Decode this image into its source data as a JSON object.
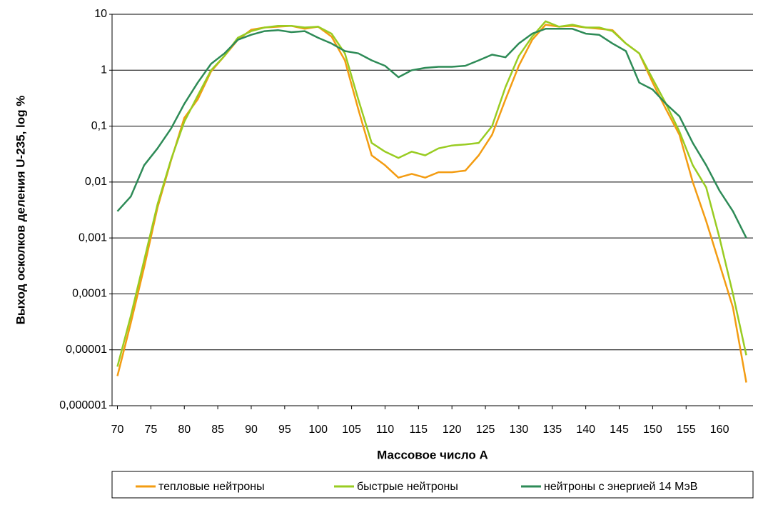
{
  "chart_data": {
    "type": "line",
    "x_label": "Массовое число А",
    "y_label": "Выход осколков деления U-235, log %",
    "x": [
      70,
      72,
      74,
      76,
      78,
      80,
      82,
      84,
      86,
      88,
      90,
      92,
      94,
      96,
      98,
      100,
      102,
      104,
      106,
      108,
      110,
      112,
      114,
      116,
      118,
      120,
      122,
      124,
      126,
      128,
      130,
      132,
      134,
      136,
      138,
      140,
      142,
      144,
      146,
      148,
      150,
      152,
      154,
      156,
      158,
      160,
      162,
      164
    ],
    "series": [
      {
        "name": "тепловые нейтроны",
        "color": "#f39c12",
        "values": [
          3.4e-06,
          3e-05,
          0.0003,
          0.0035,
          0.024,
          0.14,
          0.3,
          0.95,
          1.8,
          3.5,
          5.3,
          5.8,
          6,
          6.2,
          5.5,
          6,
          4,
          1.5,
          0.2,
          0.03,
          0.02,
          0.012,
          0.014,
          0.012,
          0.015,
          0.015,
          0.016,
          0.03,
          0.07,
          0.3,
          1.2,
          3.5,
          6.5,
          6,
          6.2,
          5.8,
          5.5,
          5.2,
          3,
          2,
          0.6,
          0.2,
          0.07,
          0.01,
          0.002,
          0.00034,
          5.7e-05,
          2.6e-06
        ]
      },
      {
        "name": "быстрые нейтроны",
        "color": "#99cc22",
        "values": [
          5e-06,
          4e-05,
          0.0004,
          0.004,
          0.025,
          0.12,
          0.35,
          1,
          1.8,
          3.8,
          5,
          5.8,
          6.2,
          6.2,
          5.8,
          6,
          4.5,
          2,
          0.3,
          0.05,
          0.035,
          0.027,
          0.035,
          0.03,
          0.04,
          0.045,
          0.047,
          0.05,
          0.1,
          0.5,
          1.8,
          4,
          7.5,
          6,
          6.5,
          5.8,
          5.8,
          5,
          3,
          2,
          0.7,
          0.25,
          0.08,
          0.02,
          0.008,
          0.001,
          0.0001,
          8e-06
        ]
      },
      {
        "name": "нейтроны с энергией 14 МэВ",
        "color": "#2e8b57",
        "values": [
          0.003,
          0.0055,
          0.02,
          0.04,
          0.09,
          0.25,
          0.6,
          1.3,
          2,
          3.5,
          4.3,
          5,
          5.2,
          4.8,
          5,
          3.8,
          3,
          2.2,
          2,
          1.5,
          1.2,
          0.75,
          1,
          1.1,
          1.15,
          1.15,
          1.2,
          1.5,
          1.9,
          1.7,
          3,
          4.5,
          5.5,
          5.5,
          5.5,
          4.5,
          4.3,
          3,
          2.2,
          0.6,
          0.45,
          0.25,
          0.15,
          0.05,
          0.02,
          0.007,
          0.003,
          0.001
        ]
      }
    ],
    "xlim": [
      69.2,
      165
    ],
    "xticks": [
      70,
      75,
      80,
      85,
      90,
      95,
      100,
      105,
      110,
      115,
      120,
      125,
      130,
      135,
      140,
      145,
      150,
      155,
      160
    ],
    "ylim": [
      1e-06,
      10
    ],
    "yticks": [
      {
        "value": 1e-06,
        "label": "0,000001"
      },
      {
        "value": 1e-05,
        "label": "0,00001"
      },
      {
        "value": 0.0001,
        "label": "0,0001"
      },
      {
        "value": 0.001,
        "label": "0,001"
      },
      {
        "value": 0.01,
        "label": "0,01"
      },
      {
        "value": 0.1,
        "label": "0,1"
      },
      1,
      10
    ],
    "log_y": true,
    "grid": true,
    "legend": "bottom"
  }
}
